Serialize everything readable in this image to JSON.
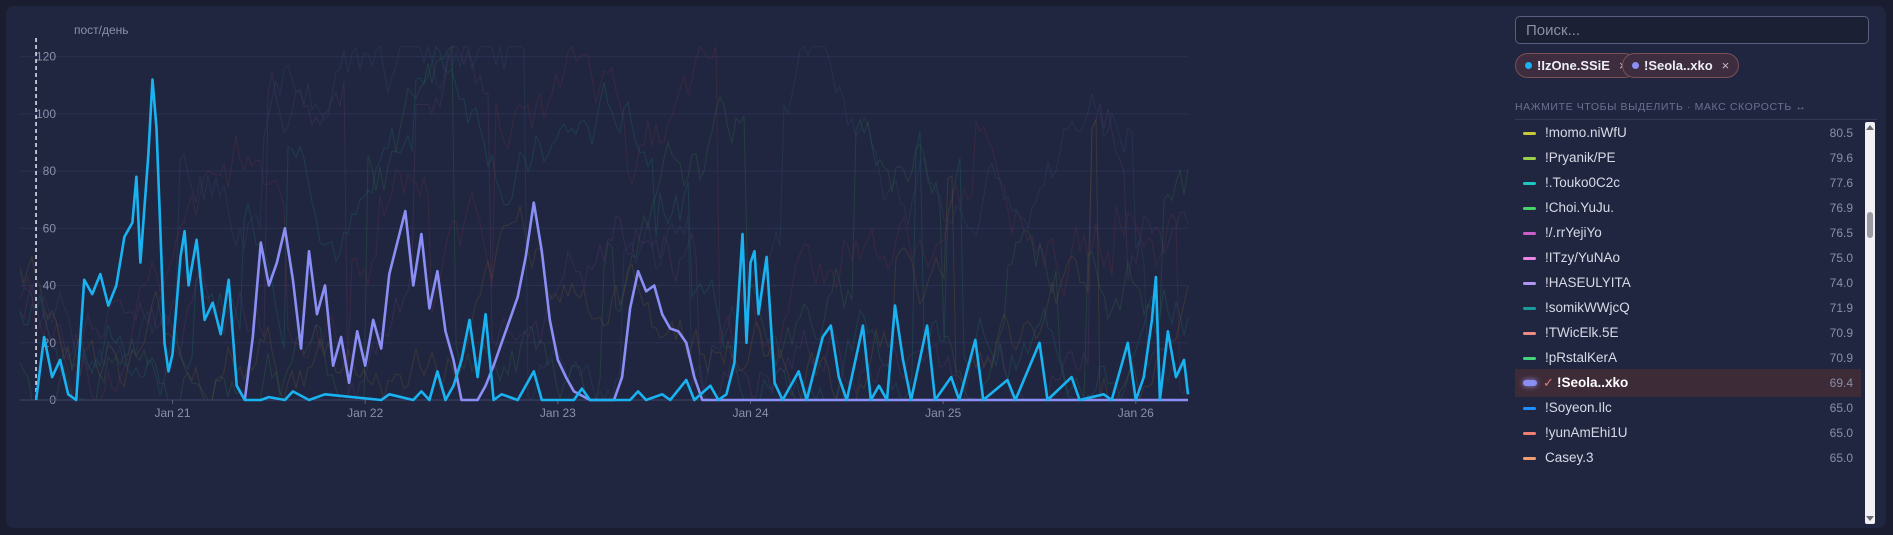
{
  "chart_data": {
    "type": "line",
    "ylabel": "пост/день",
    "yticks": [
      0,
      20,
      40,
      60,
      80,
      100,
      120
    ],
    "ylim": [
      0,
      130
    ],
    "xrange": [
      "2025-01-20T05:00",
      "2025-01-26T06:30"
    ],
    "xticks": [
      {
        "label": "Jan 21",
        "t": "2025-01-21T00:00"
      },
      {
        "label": "Jan 22",
        "t": "2025-01-22T00:00"
      },
      {
        "label": "Jan 23",
        "t": "2025-01-23T00:00"
      },
      {
        "label": "Jan 24",
        "t": "2025-01-24T00:00"
      },
      {
        "label": "Jan 25",
        "t": "2025-01-25T00:00"
      },
      {
        "label": "Jan 26",
        "t": "2025-01-26T00:00"
      }
    ],
    "marker_time": "2025-01-20T07:00",
    "background_series": "faint",
    "series": [
      {
        "name": "!IzOne.SSiE",
        "color": "#19b3f2",
        "points": [
          [
            "2025-01-20T07:00",
            0
          ],
          [
            "2025-01-20T08:00",
            22
          ],
          [
            "2025-01-20T09:00",
            8
          ],
          [
            "2025-01-20T10:00",
            14
          ],
          [
            "2025-01-20T11:00",
            2
          ],
          [
            "2025-01-20T12:00",
            0
          ],
          [
            "2025-01-20T13:00",
            42
          ],
          [
            "2025-01-20T14:00",
            37
          ],
          [
            "2025-01-20T15:00",
            44
          ],
          [
            "2025-01-20T16:00",
            33
          ],
          [
            "2025-01-20T17:00",
            40
          ],
          [
            "2025-01-20T18:00",
            57
          ],
          [
            "2025-01-20T19:00",
            62
          ],
          [
            "2025-01-20T19:30",
            78
          ],
          [
            "2025-01-20T20:00",
            48
          ],
          [
            "2025-01-20T21:00",
            86
          ],
          [
            "2025-01-20T21:30",
            112
          ],
          [
            "2025-01-20T22:00",
            95
          ],
          [
            "2025-01-20T22:30",
            58
          ],
          [
            "2025-01-20T23:00",
            20
          ],
          [
            "2025-01-20T23:30",
            10
          ],
          [
            "2025-01-21T00:00",
            16
          ],
          [
            "2025-01-21T01:00",
            50
          ],
          [
            "2025-01-21T01:30",
            59
          ],
          [
            "2025-01-21T02:00",
            40
          ],
          [
            "2025-01-21T03:00",
            56
          ],
          [
            "2025-01-21T04:00",
            28
          ],
          [
            "2025-01-21T05:00",
            34
          ],
          [
            "2025-01-21T06:00",
            23
          ],
          [
            "2025-01-21T07:00",
            42
          ],
          [
            "2025-01-21T08:00",
            5
          ],
          [
            "2025-01-21T09:00",
            0
          ],
          [
            "2025-01-21T11:00",
            0
          ],
          [
            "2025-01-21T12:00",
            1
          ],
          [
            "2025-01-21T14:00",
            0
          ],
          [
            "2025-01-21T15:00",
            3
          ],
          [
            "2025-01-21T17:00",
            0
          ],
          [
            "2025-01-21T19:00",
            2
          ],
          [
            "2025-01-22T02:00",
            0
          ],
          [
            "2025-01-22T03:00",
            2
          ],
          [
            "2025-01-22T06:00",
            0
          ],
          [
            "2025-01-22T07:00",
            3
          ],
          [
            "2025-01-22T08:00",
            0
          ],
          [
            "2025-01-22T09:00",
            10
          ],
          [
            "2025-01-22T10:00",
            0
          ],
          [
            "2025-01-22T11:00",
            5
          ],
          [
            "2025-01-22T12:00",
            14
          ],
          [
            "2025-01-22T13:00",
            28
          ],
          [
            "2025-01-22T14:00",
            8
          ],
          [
            "2025-01-22T15:00",
            30
          ],
          [
            "2025-01-22T16:00",
            0
          ],
          [
            "2025-01-22T17:00",
            2
          ],
          [
            "2025-01-22T19:00",
            0
          ],
          [
            "2025-01-22T21:00",
            10
          ],
          [
            "2025-01-22T22:00",
            0
          ],
          [
            "2025-01-23T02:00",
            0
          ],
          [
            "2025-01-23T03:00",
            4
          ],
          [
            "2025-01-23T04:00",
            0
          ],
          [
            "2025-01-23T09:00",
            0
          ],
          [
            "2025-01-23T10:00",
            3
          ],
          [
            "2025-01-23T11:00",
            0
          ],
          [
            "2025-01-23T13:00",
            2
          ],
          [
            "2025-01-23T14:00",
            0
          ],
          [
            "2025-01-23T16:00",
            7
          ],
          [
            "2025-01-23T17:00",
            0
          ],
          [
            "2025-01-23T19:00",
            5
          ],
          [
            "2025-01-23T20:00",
            0
          ],
          [
            "2025-01-23T21:00",
            2
          ],
          [
            "2025-01-23T22:00",
            13
          ],
          [
            "2025-01-23T23:00",
            58
          ],
          [
            "2025-01-23T23:30",
            20
          ],
          [
            "2025-01-24T00:00",
            48
          ],
          [
            "2025-01-24T00:30",
            52
          ],
          [
            "2025-01-24T01:00",
            30
          ],
          [
            "2025-01-24T02:00",
            50
          ],
          [
            "2025-01-24T03:00",
            6
          ],
          [
            "2025-01-24T04:00",
            0
          ],
          [
            "2025-01-24T06:00",
            10
          ],
          [
            "2025-01-24T07:00",
            0
          ],
          [
            "2025-01-24T09:00",
            22
          ],
          [
            "2025-01-24T10:00",
            26
          ],
          [
            "2025-01-24T11:00",
            8
          ],
          [
            "2025-01-24T12:00",
            0
          ],
          [
            "2025-01-24T14:00",
            26
          ],
          [
            "2025-01-24T15:00",
            0
          ],
          [
            "2025-01-24T16:00",
            5
          ],
          [
            "2025-01-24T17:00",
            0
          ],
          [
            "2025-01-24T18:00",
            33
          ],
          [
            "2025-01-24T19:00",
            14
          ],
          [
            "2025-01-24T20:00",
            0
          ],
          [
            "2025-01-24T22:00",
            26
          ],
          [
            "2025-01-24T23:00",
            0
          ],
          [
            "2025-01-25T01:00",
            8
          ],
          [
            "2025-01-25T02:00",
            0
          ],
          [
            "2025-01-25T04:00",
            21
          ],
          [
            "2025-01-25T05:00",
            0
          ],
          [
            "2025-01-25T08:00",
            7
          ],
          [
            "2025-01-25T09:00",
            0
          ],
          [
            "2025-01-25T12:00",
            20
          ],
          [
            "2025-01-25T13:00",
            0
          ],
          [
            "2025-01-25T16:00",
            8
          ],
          [
            "2025-01-25T17:00",
            0
          ],
          [
            "2025-01-25T20:00",
            2
          ],
          [
            "2025-01-25T21:00",
            0
          ],
          [
            "2025-01-25T23:00",
            20
          ],
          [
            "2025-01-26T00:00",
            0
          ],
          [
            "2025-01-26T01:00",
            8
          ],
          [
            "2025-01-26T02:00",
            28
          ],
          [
            "2025-01-26T02:30",
            43
          ],
          [
            "2025-01-26T03:00",
            0
          ],
          [
            "2025-01-26T04:00",
            24
          ],
          [
            "2025-01-26T05:00",
            8
          ],
          [
            "2025-01-26T06:00",
            14
          ],
          [
            "2025-01-26T06:30",
            2
          ]
        ]
      },
      {
        "name": "!Seola..xko",
        "color": "#8b8ff5",
        "points": [
          [
            "2025-01-21T09:00",
            0
          ],
          [
            "2025-01-21T10:00",
            22
          ],
          [
            "2025-01-21T11:00",
            55
          ],
          [
            "2025-01-21T12:00",
            40
          ],
          [
            "2025-01-21T13:00",
            48
          ],
          [
            "2025-01-21T14:00",
            60
          ],
          [
            "2025-01-21T15:00",
            42
          ],
          [
            "2025-01-21T16:00",
            18
          ],
          [
            "2025-01-21T17:00",
            52
          ],
          [
            "2025-01-21T18:00",
            30
          ],
          [
            "2025-01-21T19:00",
            40
          ],
          [
            "2025-01-21T20:00",
            12
          ],
          [
            "2025-01-21T21:00",
            22
          ],
          [
            "2025-01-21T22:00",
            6
          ],
          [
            "2025-01-21T23:00",
            24
          ],
          [
            "2025-01-22T00:00",
            12
          ],
          [
            "2025-01-22T01:00",
            28
          ],
          [
            "2025-01-22T02:00",
            18
          ],
          [
            "2025-01-22T03:00",
            44
          ],
          [
            "2025-01-22T04:00",
            55
          ],
          [
            "2025-01-22T05:00",
            66
          ],
          [
            "2025-01-22T06:00",
            40
          ],
          [
            "2025-01-22T07:00",
            58
          ],
          [
            "2025-01-22T08:00",
            32
          ],
          [
            "2025-01-22T09:00",
            45
          ],
          [
            "2025-01-22T10:00",
            24
          ],
          [
            "2025-01-22T11:00",
            14
          ],
          [
            "2025-01-22T12:00",
            0
          ],
          [
            "2025-01-22T14:00",
            0
          ],
          [
            "2025-01-22T15:00",
            5
          ],
          [
            "2025-01-22T16:00",
            12
          ],
          [
            "2025-01-22T17:00",
            20
          ],
          [
            "2025-01-22T18:00",
            28
          ],
          [
            "2025-01-22T19:00",
            36
          ],
          [
            "2025-01-22T20:00",
            50
          ],
          [
            "2025-01-22T21:00",
            69
          ],
          [
            "2025-01-22T22:00",
            52
          ],
          [
            "2025-01-22T23:00",
            28
          ],
          [
            "2025-01-23T00:00",
            14
          ],
          [
            "2025-01-23T01:00",
            8
          ],
          [
            "2025-01-23T02:00",
            3
          ],
          [
            "2025-01-23T04:00",
            0
          ],
          [
            "2025-01-23T07:00",
            0
          ],
          [
            "2025-01-23T08:00",
            8
          ],
          [
            "2025-01-23T09:00",
            32
          ],
          [
            "2025-01-23T10:00",
            45
          ],
          [
            "2025-01-23T11:00",
            38
          ],
          [
            "2025-01-23T12:00",
            40
          ],
          [
            "2025-01-23T13:00",
            30
          ],
          [
            "2025-01-23T14:00",
            25
          ],
          [
            "2025-01-23T15:00",
            24
          ],
          [
            "2025-01-23T16:00",
            20
          ],
          [
            "2025-01-23T17:00",
            8
          ],
          [
            "2025-01-23T18:00",
            0
          ],
          [
            "2025-01-26T06:30",
            0
          ]
        ]
      }
    ]
  },
  "sidebar": {
    "search_placeholder": "Поиск...",
    "chips": [
      {
        "label": "!IzOne.SSiE",
        "color": "#19b3f2",
        "remove": "×"
      },
      {
        "label": "!Seola..xko",
        "color": "#8b8ff5",
        "remove": "×"
      }
    ],
    "hint": "НАЖМИТЕ ЧТОБЫ ВЫДЕЛИТЬ · МАКС СКОРОСТЬ ↔",
    "selected_mark": "✓",
    "items": [
      {
        "name": "!momo.niWfU",
        "value": "80.5",
        "color": "#c8c83a"
      },
      {
        "name": "!Pryanik/PE",
        "value": "79.6",
        "color": "#9ad04a"
      },
      {
        "name": "!.Touko0C2c",
        "value": "77.6",
        "color": "#1fc6c2"
      },
      {
        "name": "!Choi.YuJu.",
        "value": "76.9",
        "color": "#48d36a"
      },
      {
        "name": "!/.rrYejiYo",
        "value": "76.5",
        "color": "#c85ec8"
      },
      {
        "name": "!ITzy/YuNAo",
        "value": "75.0",
        "color": "#e886e8"
      },
      {
        "name": "!HASEULYITA",
        "value": "74.0",
        "color": "#b295f0"
      },
      {
        "name": "!somikWWjcQ",
        "value": "71.9",
        "color": "#1a9a9a"
      },
      {
        "name": "!TWicElk.5E",
        "value": "70.9",
        "color": "#f08a84"
      },
      {
        "name": "!pRstalKerA",
        "value": "70.9",
        "color": "#43d47d"
      },
      {
        "name": "!Seola..xko",
        "value": "69.4",
        "color": "#8b8ff5",
        "selected": true
      },
      {
        "name": "!Soyeon.Ilc",
        "value": "65.0",
        "color": "#1e90ff"
      },
      {
        "name": "!yunAmEhi1U",
        "value": "65.0",
        "color": "#f07f72"
      },
      {
        "name": "Casey.3",
        "value": "65.0",
        "color": "#f0a070"
      }
    ]
  }
}
